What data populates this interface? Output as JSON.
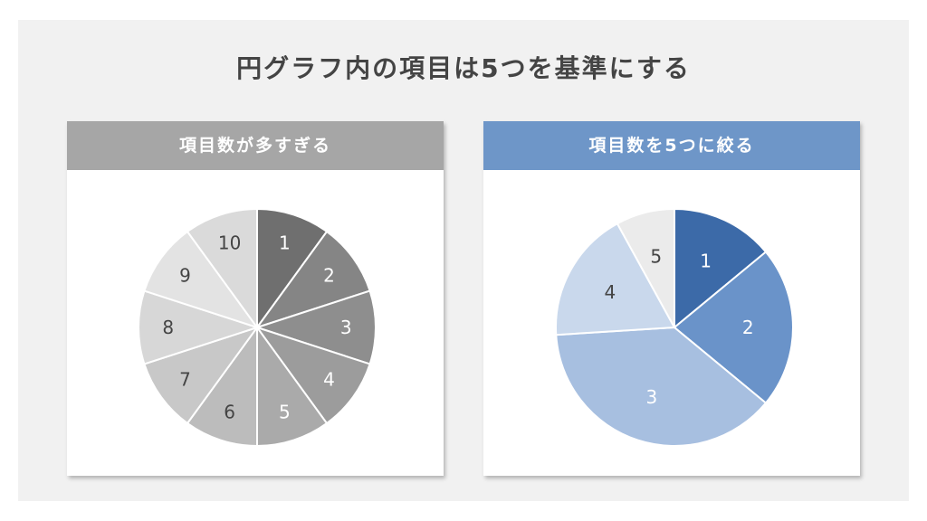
{
  "title": "円グラフ内の項目は5つを基準にする",
  "panels": [
    {
      "header": "項目数が多すぎる"
    },
    {
      "header": "項目数を5つに絞る"
    }
  ],
  "chart_data": [
    {
      "type": "pie",
      "title": "項目数が多すぎる",
      "labels": [
        "1",
        "2",
        "3",
        "4",
        "5",
        "6",
        "7",
        "8",
        "9",
        "10"
      ],
      "values": [
        10,
        10,
        10,
        10,
        10,
        10,
        10,
        10,
        10,
        10
      ],
      "colors": [
        "#6f6f6f",
        "#858585",
        "#8e8e8e",
        "#9c9c9c",
        "#aaaaaa",
        "#bcbcbc",
        "#c8c8c8",
        "#d7d7d7",
        "#e3e3e3",
        "#dadada"
      ],
      "label_colors": [
        "#ffffff",
        "#ffffff",
        "#ffffff",
        "#ffffff",
        "#ffffff",
        "#444444",
        "#444444",
        "#444444",
        "#444444",
        "#444444"
      ],
      "start_angle_deg": 0,
      "direction": "clockwise"
    },
    {
      "type": "pie",
      "title": "項目数を5つに絞る",
      "labels": [
        "1",
        "2",
        "3",
        "4",
        "5"
      ],
      "values": [
        14,
        22,
        38,
        18,
        8
      ],
      "colors": [
        "#3c6aa8",
        "#6a93c9",
        "#a7bfe0",
        "#c9d8ec",
        "#ebebeb"
      ],
      "label_colors": [
        "#ffffff",
        "#ffffff",
        "#ffffff",
        "#444444",
        "#444444"
      ],
      "start_angle_deg": 0,
      "direction": "clockwise"
    }
  ]
}
